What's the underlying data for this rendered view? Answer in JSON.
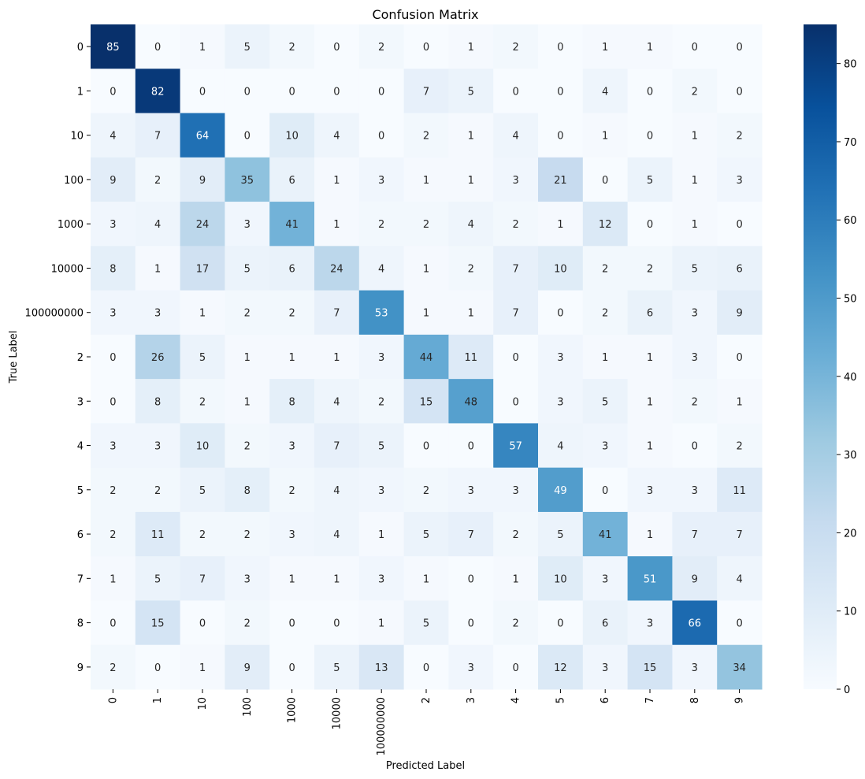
{
  "chart_data": {
    "type": "heatmap",
    "title": "Confusion Matrix",
    "xlabel": "Predicted Label",
    "ylabel": "True Label",
    "x_categories": [
      "0",
      "1",
      "10",
      "100",
      "1000",
      "10000",
      "100000000",
      "2",
      "3",
      "4",
      "5",
      "6",
      "7",
      "8",
      "9"
    ],
    "y_categories": [
      "0",
      "1",
      "10",
      "100",
      "1000",
      "10000",
      "100000000",
      "2",
      "3",
      "4",
      "5",
      "6",
      "7",
      "8",
      "9"
    ],
    "values": [
      [
        85,
        0,
        1,
        5,
        2,
        0,
        2,
        0,
        1,
        2,
        0,
        1,
        1,
        0,
        0
      ],
      [
        0,
        82,
        0,
        0,
        0,
        0,
        0,
        7,
        5,
        0,
        0,
        4,
        0,
        2,
        0
      ],
      [
        4,
        7,
        64,
        0,
        10,
        4,
        0,
        2,
        1,
        4,
        0,
        1,
        0,
        1,
        2
      ],
      [
        9,
        2,
        9,
        35,
        6,
        1,
        3,
        1,
        1,
        3,
        21,
        0,
        5,
        1,
        3
      ],
      [
        3,
        4,
        24,
        3,
        41,
        1,
        2,
        2,
        4,
        2,
        1,
        12,
        0,
        1,
        0
      ],
      [
        8,
        1,
        17,
        5,
        6,
        24,
        4,
        1,
        2,
        7,
        10,
        2,
        2,
        5,
        6
      ],
      [
        3,
        3,
        1,
        2,
        2,
        7,
        53,
        1,
        1,
        7,
        0,
        2,
        6,
        3,
        9
      ],
      [
        0,
        26,
        5,
        1,
        1,
        1,
        3,
        44,
        11,
        0,
        3,
        1,
        1,
        3,
        0
      ],
      [
        0,
        8,
        2,
        1,
        8,
        4,
        2,
        15,
        48,
        0,
        3,
        5,
        1,
        2,
        1
      ],
      [
        3,
        3,
        10,
        2,
        3,
        7,
        5,
        0,
        0,
        57,
        4,
        3,
        1,
        0,
        2
      ],
      [
        2,
        2,
        5,
        8,
        2,
        4,
        3,
        2,
        3,
        3,
        49,
        0,
        3,
        3,
        11
      ],
      [
        2,
        11,
        2,
        2,
        3,
        4,
        1,
        5,
        7,
        2,
        5,
        41,
        1,
        7,
        7
      ],
      [
        1,
        5,
        7,
        3,
        1,
        1,
        3,
        1,
        0,
        1,
        10,
        3,
        51,
        9,
        4
      ],
      [
        0,
        15,
        0,
        2,
        0,
        0,
        1,
        5,
        0,
        2,
        0,
        6,
        3,
        66,
        0
      ],
      [
        2,
        0,
        1,
        9,
        0,
        5,
        13,
        0,
        3,
        0,
        12,
        3,
        15,
        3,
        34
      ]
    ],
    "vmin": 0,
    "vmax": 85,
    "colormap": "Blues",
    "colorbar_ticks": [
      0,
      10,
      20,
      30,
      40,
      50,
      60,
      70,
      80
    ],
    "annotate": true
  }
}
